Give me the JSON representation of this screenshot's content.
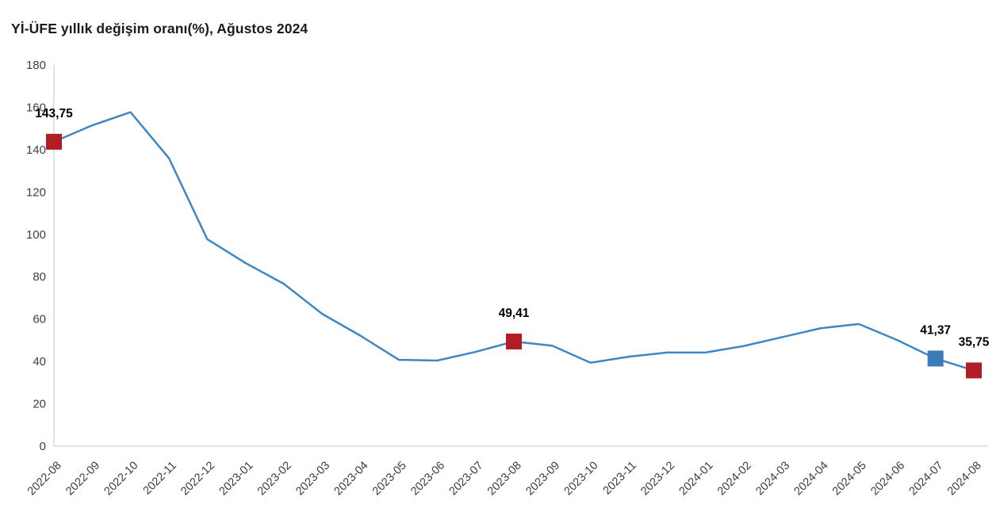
{
  "title": "Yİ-ÜFE yıllık değişim oranı(%), Ağustos 2024",
  "colors": {
    "line": "#3e86c6",
    "marker_red": "#ae1e24",
    "marker_blue": "#3b7cb8",
    "axis": "#d9d9d9",
    "tick_label": "#3f3f3f",
    "annotation": "#000000",
    "background": "#ffffff"
  },
  "chart_data": {
    "type": "line",
    "title": "Yİ-ÜFE yıllık değişim oranı(%), Ağustos 2024",
    "xlabel": "",
    "ylabel": "",
    "ylim": [
      0,
      180
    ],
    "ytick_step": 20,
    "grid": false,
    "legend": false,
    "x": [
      "2022-08",
      "2022-09",
      "2022-10",
      "2022-11",
      "2022-12",
      "2023-01",
      "2023-02",
      "2023-03",
      "2023-04",
      "2023-05",
      "2023-06",
      "2023-07",
      "2023-08",
      "2023-09",
      "2023-10",
      "2023-11",
      "2023-12",
      "2024-01",
      "2024-02",
      "2024-03",
      "2024-04",
      "2024-05",
      "2024-06",
      "2024-07",
      "2024-08"
    ],
    "series": [
      {
        "name": "Yİ-ÜFE yıllık değişim oranı (%)",
        "values": [
          143.75,
          151.5,
          157.69,
          136.02,
          97.72,
          86.46,
          76.61,
          62.45,
          52.11,
          40.76,
          40.42,
          44.5,
          49.41,
          47.44,
          39.39,
          42.25,
          44.22,
          44.2,
          47.29,
          51.47,
          55.66,
          57.68,
          50.09,
          41.37,
          35.75
        ]
      }
    ],
    "marked_points": [
      {
        "x": "2022-08",
        "value": 143.75,
        "label": "143,75",
        "color": "#ae1e24"
      },
      {
        "x": "2023-08",
        "value": 49.41,
        "label": "49,41",
        "color": "#ae1e24"
      },
      {
        "x": "2024-07",
        "value": 41.37,
        "label": "41,37",
        "color": "#3b7cb8"
      },
      {
        "x": "2024-08",
        "value": 35.75,
        "label": "35,75",
        "color": "#ae1e24"
      }
    ]
  }
}
